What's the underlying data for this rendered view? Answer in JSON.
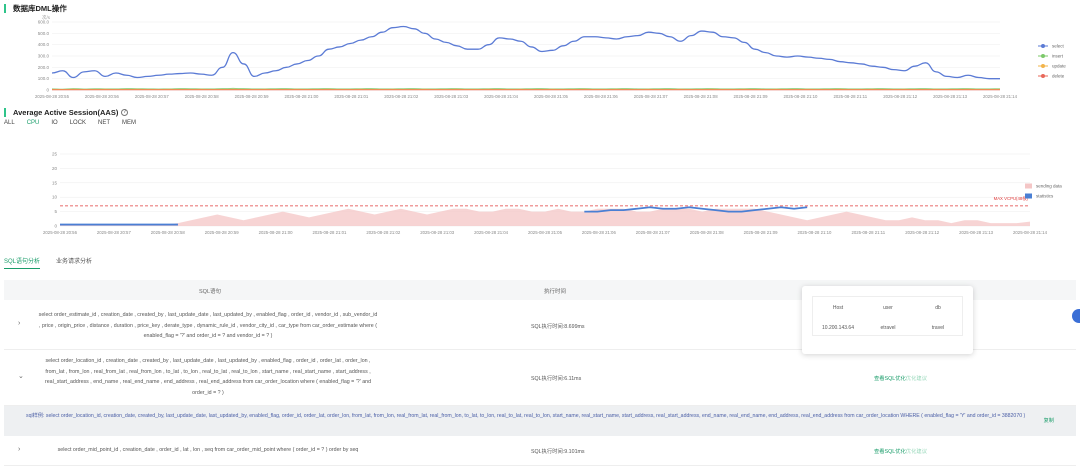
{
  "dml": {
    "title": "数据库DML操作",
    "y_ticks": [
      "600.0",
      "500.0",
      "400.0",
      "300.0",
      "200.0",
      "100.0",
      "0"
    ],
    "y_unit": "次/s",
    "x_ticks": [
      "2025-08-28 20:55",
      "2025-08-28 20:56",
      "2025-08-28 20:57",
      "2025-08-28 20:58",
      "2025-08-28 20:59",
      "2025-08-28 21:00",
      "2025-08-28 21:01",
      "2025-08-28 21:02",
      "2025-08-28 21:03",
      "2025-08-28 21:04",
      "2025-08-28 21:05",
      "2025-08-28 21:06",
      "2025-08-28 21:07",
      "2025-08-28 21:08",
      "2025-08-28 21:09",
      "2025-08-28 21:10",
      "2025-08-28 21:11",
      "2025-08-28 21:12",
      "2025-08-28 21:13",
      "2025-08-28 21:14"
    ],
    "legend": [
      {
        "name": "select",
        "color": "#5b7bd5"
      },
      {
        "name": "insert",
        "color": "#7cc96a"
      },
      {
        "name": "update",
        "color": "#f2b44b"
      },
      {
        "name": "delete",
        "color": "#e8685a"
      }
    ]
  },
  "aas": {
    "title": "Average Active Session(AAS)",
    "help_icon": "question-circle-icon",
    "tabs": [
      "ALL",
      "CPU",
      "IO",
      "LOCK",
      "NET",
      "MEM"
    ],
    "active_tab": "CPU",
    "y_ticks": [
      "25",
      "20",
      "15",
      "10",
      "5",
      "0"
    ],
    "threshold_label": "MAX VCPU(48核)",
    "x_ticks": [
      "2025-08-28 20:56",
      "2025-08-28 20:57",
      "2025-08-28 20:58",
      "2025-08-28 20:59",
      "2025-08-28 21:00",
      "2025-08-28 21:01",
      "2025-08-28 21:02",
      "2025-08-28 21:03",
      "2025-08-28 21:04",
      "2025-08-28 21:05",
      "2025-08-28 21:06",
      "2025-08-28 21:07",
      "2025-08-28 21:08",
      "2025-08-28 21:09",
      "2025-08-28 21:10",
      "2025-08-28 21:11",
      "2025-08-28 21:12",
      "2025-08-28 21:13",
      "2025-08-28 21:14"
    ],
    "legend": [
      {
        "name": "sending data",
        "color": "#f4c6c6"
      },
      {
        "name": "statistics",
        "color": "#4a7fd4"
      }
    ]
  },
  "chart_data": [
    {
      "type": "line",
      "title": "数据库DML操作",
      "ylim": [
        0,
        600
      ],
      "series": [
        {
          "name": "select",
          "values": [
            150,
            170,
            110,
            160,
            170,
            120,
            150,
            130,
            110,
            120,
            130,
            140,
            145,
            150,
            140,
            130,
            200,
            330,
            230,
            120,
            150,
            170,
            200,
            230,
            260,
            300,
            360,
            380,
            410,
            440,
            470,
            510,
            550,
            560,
            540,
            500,
            450,
            420,
            390,
            360,
            360,
            400,
            460,
            450,
            430,
            380,
            340,
            350,
            390,
            430,
            470,
            470,
            460,
            450,
            470,
            480,
            510,
            500,
            470,
            430,
            480,
            520,
            510,
            470,
            460,
            420,
            360,
            330,
            300,
            290,
            300,
            290,
            280,
            270,
            250,
            240,
            230,
            210,
            200,
            180,
            170,
            210,
            240,
            160,
            120,
            110,
            130,
            110,
            100,
            100
          ]
        },
        {
          "name": "insert",
          "values": [
            10,
            8,
            12,
            9,
            11,
            10,
            10,
            12,
            11,
            10,
            9,
            10,
            12,
            11,
            10,
            10,
            12,
            15,
            12,
            10,
            10,
            11,
            12,
            10,
            10,
            11,
            12,
            10,
            10,
            11,
            12,
            10,
            10,
            11,
            12,
            10,
            10,
            11,
            12,
            10,
            10,
            11,
            12,
            10,
            10,
            11,
            12,
            10,
            10,
            11,
            12,
            10,
            10,
            11,
            12,
            10,
            10,
            11,
            12,
            10,
            10,
            11,
            12,
            10,
            10,
            11,
            12,
            10,
            10,
            11,
            12,
            10,
            10,
            11,
            12,
            10,
            10,
            11,
            12,
            10,
            10,
            11,
            12,
            10,
            10,
            11,
            12,
            10,
            10,
            11
          ]
        },
        {
          "name": "update",
          "values": [
            5,
            5,
            6,
            5,
            5,
            6,
            5,
            5,
            6,
            5,
            5,
            6,
            5,
            5,
            6,
            5,
            5,
            6,
            5,
            5,
            6,
            5,
            5,
            6,
            5,
            5,
            6,
            5,
            5,
            6,
            5,
            5,
            6,
            5,
            5,
            6,
            5,
            5,
            6,
            5,
            5,
            6,
            5,
            5,
            6,
            5,
            5,
            6,
            5,
            5,
            6,
            5,
            5,
            6,
            5,
            5,
            6,
            5,
            5,
            6,
            5,
            5,
            6,
            5,
            5,
            6,
            5,
            5,
            6,
            5,
            5,
            6,
            5,
            5,
            6,
            5,
            5,
            6,
            5,
            5,
            6,
            5,
            5,
            6,
            5,
            5,
            6,
            5,
            5,
            6
          ]
        },
        {
          "name": "delete",
          "values": [
            1,
            1,
            1,
            1,
            1,
            1,
            1,
            1,
            1,
            1,
            1,
            1,
            1,
            1,
            1,
            1,
            1,
            1,
            1,
            1,
            1,
            1,
            1,
            1,
            1,
            1,
            1,
            1,
            1,
            1,
            1,
            1,
            1,
            1,
            1,
            1,
            1,
            1,
            1,
            1,
            1,
            1,
            1,
            1,
            1,
            1,
            1,
            1,
            1,
            1,
            1,
            1,
            1,
            1,
            1,
            1,
            1,
            1,
            1,
            1,
            1,
            1,
            1,
            1,
            1,
            1,
            1,
            1,
            1,
            1,
            1,
            1,
            1,
            1,
            1,
            1,
            1,
            1,
            1,
            1,
            1,
            1,
            1,
            1,
            1,
            1,
            1,
            1,
            1,
            1
          ]
        }
      ]
    },
    {
      "type": "area",
      "title": "Average Active Session(AAS)",
      "ylim": [
        0,
        25
      ],
      "threshold": 7,
      "series": [
        {
          "name": "sending data",
          "values": [
            0.5,
            0.5,
            0.5,
            0.5,
            0.5,
            0.5,
            0.5,
            0.5,
            0.5,
            1,
            2,
            3,
            4,
            3,
            2,
            3,
            4,
            5,
            4,
            3,
            4,
            5,
            6,
            5,
            4,
            5,
            6,
            5,
            4,
            5,
            6,
            6,
            5,
            5,
            6,
            6,
            5,
            5,
            6,
            5,
            5,
            6,
            6,
            6,
            5,
            5,
            6,
            6,
            6,
            5,
            6,
            6,
            6,
            6,
            5,
            4,
            3,
            2,
            3,
            4,
            5,
            4,
            3,
            2,
            2,
            3,
            2,
            2,
            1,
            2,
            2,
            1,
            1,
            1,
            1.5
          ]
        },
        {
          "name": "statistics",
          "values": [
            0.5,
            0.5,
            0.5,
            0.5,
            0.5,
            0.5,
            0.5,
            0.5,
            0.5,
            0.5,
            null,
            null,
            null,
            null,
            null,
            null,
            null,
            null,
            null,
            null,
            null,
            null,
            null,
            null,
            null,
            null,
            null,
            null,
            null,
            null,
            null,
            null,
            null,
            null,
            null,
            null,
            null,
            null,
            null,
            null,
            5,
            5,
            5.5,
            5.5,
            6,
            6.5,
            6,
            6,
            6.5,
            6,
            5.5,
            5,
            5,
            5.5,
            6,
            6.5,
            6,
            6.5,
            null,
            null,
            null,
            null,
            null,
            null,
            null,
            null,
            null,
            null,
            null,
            null,
            null,
            null,
            null,
            null,
            null
          ]
        }
      ]
    }
  ],
  "sql_tabs": [
    "SQL语句分析",
    "业务请求分析"
  ],
  "sql_active_tab": "SQL语句分析",
  "table": {
    "col_sql": "SQL语句",
    "col_metric": "执行时间"
  },
  "rows": [
    {
      "caret": "›",
      "sql": "select order_estimate_id , creation_date , created_by , last_update_date , last_updated_by , enabled_flag , order_id , vendor_id , sub_vendor_id , price , origin_price , distance , duration , price_key , derate_type , dynamic_rule_id , vendor_city_id , car_type from car_order_estimate where ( enabled_flag = '?' and order_id = ? and vendor_id = ? )",
      "metric": "SQL执行时间:8.699ms",
      "action": "",
      "action_sub": ""
    },
    {
      "caret": "⌄",
      "sql": "select order_location_id , creation_date , created_by , last_update_date , last_updated_by , enabled_flag , order_id , order_lat , order_lon , from_lat , from_lon , real_from_lat , real_from_lon , to_lat , to_lon , real_to_lat , real_to_lon , start_name , real_start_name , start_address , real_start_address , end_name , real_end_name , end_address , real_end_address from car_order_location where ( enabled_flag = '?' and order_id = ? )",
      "metric": "SQL执行时间:6.11ms",
      "action": "查看SQL优化",
      "action_sub": "优化建议"
    },
    {
      "caret": "›",
      "sql": "select order_mid_point_id , creation_date , order_id , lat , lon , seq from car_order_mid_point where ( order_id = ? ) order by seq",
      "metric": "SQL执行时间:9.101ms",
      "action": "查看SQL优化",
      "action_sub": "优化建议"
    }
  ],
  "detail": {
    "text": "sql样例: select order_location_id, creation_date, created_by, last_update_date, last_updated_by, enabled_flag, order_id, order_lat, order_lon, from_lat, from_lon, real_from_lat, real_from_lon, to_lat, to_lon, real_to_lat, real_to_lon, start_name, real_start_name, start_address, real_start_address, end_name, real_end_name, end_address, real_end_address from car_order_location WHERE ( enabled_flag = 'Y' and order_id = 3882070 )",
    "copy": "复制"
  },
  "popup": {
    "headers": [
      "Host",
      "user",
      "db"
    ],
    "values": [
      "10.200.143.64",
      "etravel",
      "travel"
    ]
  }
}
